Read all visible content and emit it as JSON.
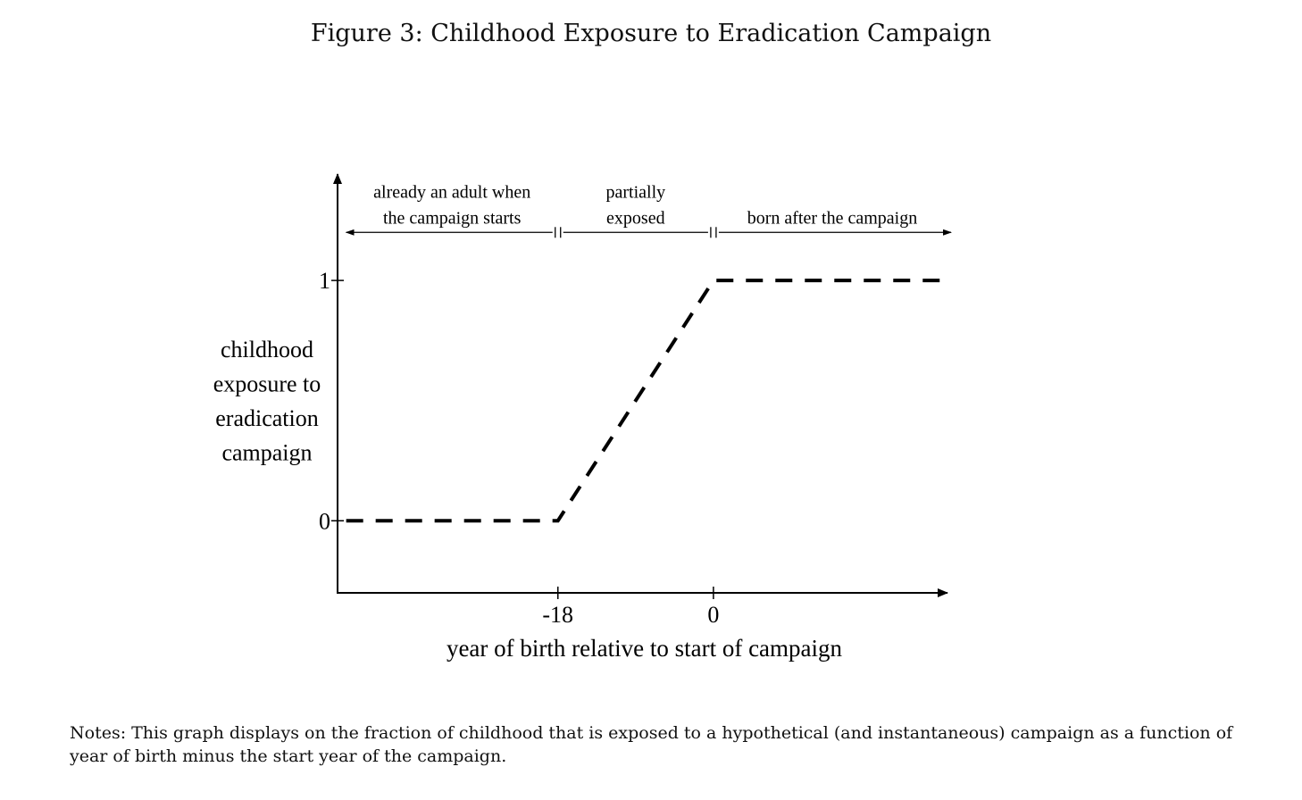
{
  "figure": {
    "title": "Figure 3: Childhood Exposure to Eradication Campaign",
    "notes": "Notes: This graph displays on the fraction of childhood that is exposed to a hypothetical (and instantaneous) campaign as a function of year of birth minus the start year of the campaign."
  },
  "chart_data": {
    "type": "line",
    "title": "",
    "xlabel": "year of birth relative to start of campaign",
    "ylabel_lines": [
      "childhood",
      "exposure to",
      "eradication",
      "campaign"
    ],
    "x_ticks": [
      -18,
      0
    ],
    "x_tick_labels": [
      "-18",
      "0"
    ],
    "y_ticks": [
      0,
      1
    ],
    "y_tick_labels": [
      "0",
      "1"
    ],
    "xlim": [
      -43.5,
      27.5
    ],
    "ylim": [
      -0.3,
      1.45
    ],
    "line_style": "dashed",
    "series": [
      {
        "x": [
          -42.5,
          -18,
          0,
          27.5
        ],
        "y": [
          0,
          0,
          1,
          1
        ]
      }
    ],
    "regions": [
      {
        "lines": [
          "already an adult when",
          "the campaign starts"
        ],
        "from": -42.5,
        "to": -18
      },
      {
        "lines": [
          "partially",
          "exposed"
        ],
        "from": -18,
        "to": 0
      },
      {
        "lines": [
          "born after the campaign"
        ],
        "from": 0,
        "to": 27.5
      }
    ],
    "grid": false,
    "legend": "none"
  }
}
